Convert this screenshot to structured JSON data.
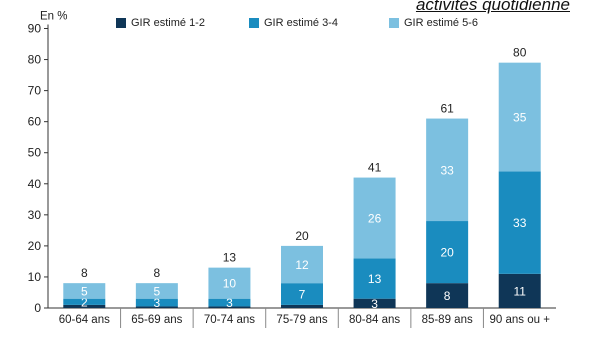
{
  "header": {
    "caption": "activités quotidienne"
  },
  "chart_data": {
    "type": "bar",
    "stacked": true,
    "unit_label": "En %",
    "categories": [
      "60-64 ans",
      "65-69 ans",
      "70-74 ans",
      "75-79 ans",
      "80-84 ans",
      "85-89 ans",
      "90 ans ou +"
    ],
    "series": [
      {
        "name": "GIR estimé 1-2",
        "color": "#0f3657",
        "values": [
          1,
          0.5,
          0.5,
          1,
          3,
          8,
          11
        ],
        "labels": [
          "",
          "",
          "",
          "",
          "3",
          "8",
          "11"
        ]
      },
      {
        "name": "GIR estimé 3-4",
        "color": "#1a8cbf",
        "values": [
          2,
          2.5,
          2.5,
          7,
          13,
          20,
          33
        ],
        "labels": [
          "2",
          "3",
          "3",
          "7",
          "13",
          "20",
          "33"
        ]
      },
      {
        "name": "GIR estimé 5-6",
        "color": "#7cc0e0",
        "values": [
          5,
          5,
          10,
          12,
          26,
          33,
          35
        ],
        "labels": [
          "5",
          "5",
          "10",
          "12",
          "26",
          "33",
          "35"
        ]
      }
    ],
    "totals": [
      "8",
      "8",
      "13",
      "20",
      "41",
      "61",
      "80"
    ],
    "ylim": [
      0,
      90
    ],
    "yticks": [
      0,
      10,
      20,
      30,
      40,
      50,
      60,
      70,
      80,
      90
    ],
    "grid": false,
    "legend_position": "top"
  }
}
